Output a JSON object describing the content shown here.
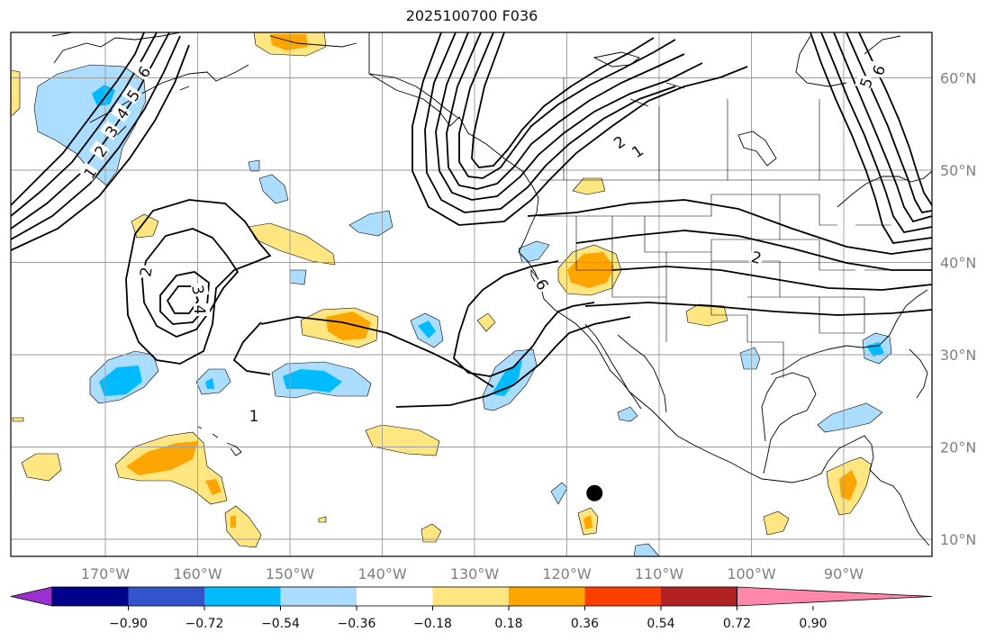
{
  "title": "2025100700 F036",
  "lat_labels": [
    "60°N",
    "50°N",
    "40°N",
    "30°N",
    "20°N",
    "10°N"
  ],
  "lon_labels": [
    "170°W",
    "160°W",
    "150°W",
    "140°W",
    "130°W",
    "120°W",
    "110°W",
    "100°W",
    "90°W"
  ],
  "colorbar": {
    "tick_labels": [
      "−0.90",
      "−0.72",
      "−0.54",
      "−0.36",
      "−0.18",
      "0.18",
      "0.36",
      "0.54",
      "0.72",
      "0.90"
    ],
    "colors": [
      "#9b30d0",
      "#000088",
      "#3355cc",
      "#00bbff",
      "#aaddff",
      "#ffffff",
      "#ffe680",
      "#ffa500",
      "#ff3f00",
      "#b22222",
      "#ff88aa"
    ]
  },
  "contour_labels": [
    "1",
    "2",
    "3",
    "4",
    "5",
    "6",
    "1",
    "2",
    "2",
    "3",
    "4",
    "6",
    "1",
    "2",
    "5",
    "6"
  ],
  "marker": {
    "name": "black-dot-marker",
    "lat": 15,
    "lon": -117
  }
}
